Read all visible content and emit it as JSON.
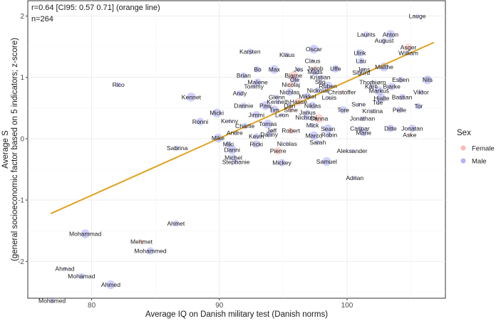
{
  "chart_data": {
    "type": "scatter",
    "annotations": [
      "r=0.64 [CI95: 0.57 0.71] (orange line)",
      "n=264"
    ],
    "xlabel": "Average IQ on Danish military test (Danish norms)",
    "ylabel": [
      "Average S",
      "(general socioeconomic factor based on 5 indicators; z-score)"
    ],
    "xlim": [
      75,
      107.7
    ],
    "ylim": [
      -2.6,
      2.25
    ],
    "x_ticks": [
      80,
      90,
      100
    ],
    "y_ticks": [
      -2,
      -1,
      0,
      1,
      2
    ],
    "grid": true,
    "legend": {
      "title": "Sex",
      "position": "right",
      "entries": [
        {
          "name": "Female",
          "color": "#F8766D"
        },
        {
          "name": "Male",
          "color": "#6666ee"
        }
      ]
    },
    "fit_line": {
      "x": [
        76.8,
        106.8
      ],
      "y": [
        -1.22,
        1.57
      ],
      "color": "#e0a21f"
    },
    "labeled_points": [
      {
        "name": "Lauge",
        "x": 105.5,
        "y": 2.0
      },
      {
        "name": "Laurits",
        "x": 101.5,
        "y": 1.7
      },
      {
        "name": "Anton",
        "x": 103.4,
        "y": 1.7
      },
      {
        "name": "August",
        "x": 102.9,
        "y": 1.6
      },
      {
        "name": "Asger",
        "x": 104.8,
        "y": 1.49
      },
      {
        "name": "William",
        "x": 104.8,
        "y": 1.4
      },
      {
        "name": "Karsten",
        "x": 92.4,
        "y": 1.42
      },
      {
        "name": "Oscar",
        "x": 97.4,
        "y": 1.46
      },
      {
        "name": "Klaus",
        "x": 95.3,
        "y": 1.37
      },
      {
        "name": "Ulrik",
        "x": 101.0,
        "y": 1.4
      },
      {
        "name": "Claus",
        "x": 97.3,
        "y": 1.27
      },
      {
        "name": "Lau",
        "x": 101.1,
        "y": 1.27
      },
      {
        "name": "Malthe",
        "x": 102.9,
        "y": 1.17
      },
      {
        "name": "Jacob",
        "x": 97.5,
        "y": 1.15
      },
      {
        "name": "Uffe",
        "x": 99.1,
        "y": 1.14
      },
      {
        "name": "Jens",
        "x": 101.3,
        "y": 1.13
      },
      {
        "name": "Bo",
        "x": 93.0,
        "y": 1.13
      },
      {
        "name": "Max",
        "x": 94.3,
        "y": 1.13
      },
      {
        "name": "Jes",
        "x": 96.2,
        "y": 1.13
      },
      {
        "name": "Mads",
        "x": 97.5,
        "y": 1.09
      },
      {
        "name": "Sigurd",
        "x": 101.1,
        "y": 1.08
      },
      {
        "name": "Brian",
        "x": 91.9,
        "y": 1.03
      },
      {
        "name": "Bjarne",
        "x": 95.8,
        "y": 1.03
      },
      {
        "name": "Kristian",
        "x": 97.9,
        "y": 1.0
      },
      {
        "name": "Ole",
        "x": 95.9,
        "y": 0.96
      },
      {
        "name": "Stig",
        "x": 97.9,
        "y": 0.93
      },
      {
        "name": "Esben",
        "x": 104.2,
        "y": 0.96
      },
      {
        "name": "Nils",
        "x": 106.3,
        "y": 0.96
      },
      {
        "name": "Rico",
        "x": 82.1,
        "y": 0.88
      },
      {
        "name": "Malene",
        "x": 93.0,
        "y": 0.92
      },
      {
        "name": "Thorbjørn",
        "x": 102.0,
        "y": 0.92
      },
      {
        "name": "Nicolaj",
        "x": 95.6,
        "y": 0.88
      },
      {
        "name": "Ruben",
        "x": 98.5,
        "y": 0.86
      },
      {
        "name": "Kåre",
        "x": 101.9,
        "y": 0.85
      },
      {
        "name": "Bjarke",
        "x": 103.5,
        "y": 0.85
      },
      {
        "name": "Tommy",
        "x": 92.7,
        "y": 0.85
      },
      {
        "name": "Nickolai",
        "x": 97.7,
        "y": 0.79
      },
      {
        "name": "Markus",
        "x": 102.5,
        "y": 0.78
      },
      {
        "name": "Viktor",
        "x": 105.8,
        "y": 0.76
      },
      {
        "name": "Nichlas",
        "x": 95.5,
        "y": 0.76
      },
      {
        "name": "Christoffer",
        "x": 99.6,
        "y": 0.76
      },
      {
        "name": "Andy",
        "x": 91.6,
        "y": 0.74
      },
      {
        "name": "Kennet",
        "x": 87.8,
        "y": 0.68
      },
      {
        "name": "Glenn",
        "x": 94.5,
        "y": 0.68
      },
      {
        "name": "Mikkel",
        "x": 96.9,
        "y": 0.69
      },
      {
        "name": "Louis",
        "x": 98.6,
        "y": 0.67
      },
      {
        "name": "Bastian",
        "x": 104.3,
        "y": 0.68
      },
      {
        "name": "Hjalte",
        "x": 102.7,
        "y": 0.66
      },
      {
        "name": "Kenneth",
        "x": 94.6,
        "y": 0.6
      },
      {
        "name": "Hasse",
        "x": 96.2,
        "y": 0.6
      },
      {
        "name": "Tue",
        "x": 102.4,
        "y": 0.59
      },
      {
        "name": "Dannie",
        "x": 91.9,
        "y": 0.54
      },
      {
        "name": "Paw",
        "x": 93.6,
        "y": 0.54
      },
      {
        "name": "Dan",
        "x": 95.5,
        "y": 0.54
      },
      {
        "name": "Niklas",
        "x": 97.3,
        "y": 0.54
      },
      {
        "name": "Sune",
        "x": 100.9,
        "y": 0.56
      },
      {
        "name": "Tor",
        "x": 105.6,
        "y": 0.53
      },
      {
        "name": "Tim",
        "x": 94.3,
        "y": 0.47
      },
      {
        "name": "Stine",
        "x": 95.6,
        "y": 0.47
      },
      {
        "name": "Tore",
        "x": 99.7,
        "y": 0.47
      },
      {
        "name": "Kristina",
        "x": 102.0,
        "y": 0.45
      },
      {
        "name": "Pelle",
        "x": 104.1,
        "y": 0.47
      },
      {
        "name": "Micki",
        "x": 89.8,
        "y": 0.42
      },
      {
        "name": "Janus",
        "x": 96.9,
        "y": 0.43
      },
      {
        "name": "Jimmi",
        "x": 92.9,
        "y": 0.39
      },
      {
        "name": "Leon",
        "x": 94.9,
        "y": 0.39
      },
      {
        "name": "Nicholai",
        "x": 96.8,
        "y": 0.35
      },
      {
        "name": "Canna",
        "x": 97.8,
        "y": 0.33
      },
      {
        "name": "Jonathan",
        "x": 101.2,
        "y": 0.33
      },
      {
        "name": "Ronni",
        "x": 88.5,
        "y": 0.28
      },
      {
        "name": "Kenny",
        "x": 90.8,
        "y": 0.29
      },
      {
        "name": "Charlie",
        "x": 92.0,
        "y": 0.21
      },
      {
        "name": "Tomas",
        "x": 93.8,
        "y": 0.24
      },
      {
        "name": "Mick",
        "x": 97.3,
        "y": 0.22
      },
      {
        "name": "Jonatan",
        "x": 105.1,
        "y": 0.17
      },
      {
        "name": "Jeff",
        "x": 94.1,
        "y": 0.13
      },
      {
        "name": "Robert",
        "x": 95.6,
        "y": 0.13
      },
      {
        "name": "Sean",
        "x": 98.5,
        "y": 0.16
      },
      {
        "name": "Caspar",
        "x": 101.0,
        "y": 0.17
      },
      {
        "name": "Ditte",
        "x": 103.4,
        "y": 0.17
      },
      {
        "name": "Andre",
        "x": 91.2,
        "y": 0.1
      },
      {
        "name": "Danny",
        "x": 93.9,
        "y": 0.07
      },
      {
        "name": "Marco",
        "x": 97.4,
        "y": 0.05
      },
      {
        "name": "Robin",
        "x": 98.6,
        "y": 0.06
      },
      {
        "name": "Marie",
        "x": 101.3,
        "y": 0.1
      },
      {
        "name": "Aske",
        "x": 104.9,
        "y": 0.06
      },
      {
        "name": "Kevin",
        "x": 92.9,
        "y": 0.04
      },
      {
        "name": "Mike",
        "x": 89.9,
        "y": 0.01
      },
      {
        "name": "Sarah",
        "x": 97.7,
        "y": -0.06
      },
      {
        "name": "Ricki",
        "x": 92.9,
        "y": -0.09
      },
      {
        "name": "Nicolas",
        "x": 95.3,
        "y": -0.08
      },
      {
        "name": "Miki",
        "x": 90.7,
        "y": -0.09
      },
      {
        "name": "Danni",
        "x": 91.0,
        "y": -0.18
      },
      {
        "name": "Sabrina",
        "x": 86.7,
        "y": -0.15
      },
      {
        "name": "Pierre",
        "x": 94.6,
        "y": -0.2
      },
      {
        "name": "Aleksander",
        "x": 100.4,
        "y": -0.2
      },
      {
        "name": "Michel",
        "x": 91.1,
        "y": -0.31
      },
      {
        "name": "Samuel",
        "x": 98.4,
        "y": -0.37
      },
      {
        "name": "Stephanie",
        "x": 91.3,
        "y": -0.38
      },
      {
        "name": "Mickey",
        "x": 94.9,
        "y": -0.39
      },
      {
        "name": "Adrian",
        "x": 100.6,
        "y": -0.64
      },
      {
        "name": "Ahmet",
        "x": 86.6,
        "y": -1.38
      },
      {
        "name": "Mohammad",
        "x": 79.5,
        "y": -1.55
      },
      {
        "name": "Mehmet",
        "x": 83.9,
        "y": -1.68
      },
      {
        "name": "Mohammed",
        "x": 84.6,
        "y": -1.83
      },
      {
        "name": "Ahmad",
        "x": 77.9,
        "y": -2.12
      },
      {
        "name": "Mohamad",
        "x": 79.2,
        "y": -2.24
      },
      {
        "name": "Ahmed",
        "x": 81.5,
        "y": -2.38
      },
      {
        "name": "Mohamed",
        "x": 76.9,
        "y": -2.64
      }
    ]
  }
}
